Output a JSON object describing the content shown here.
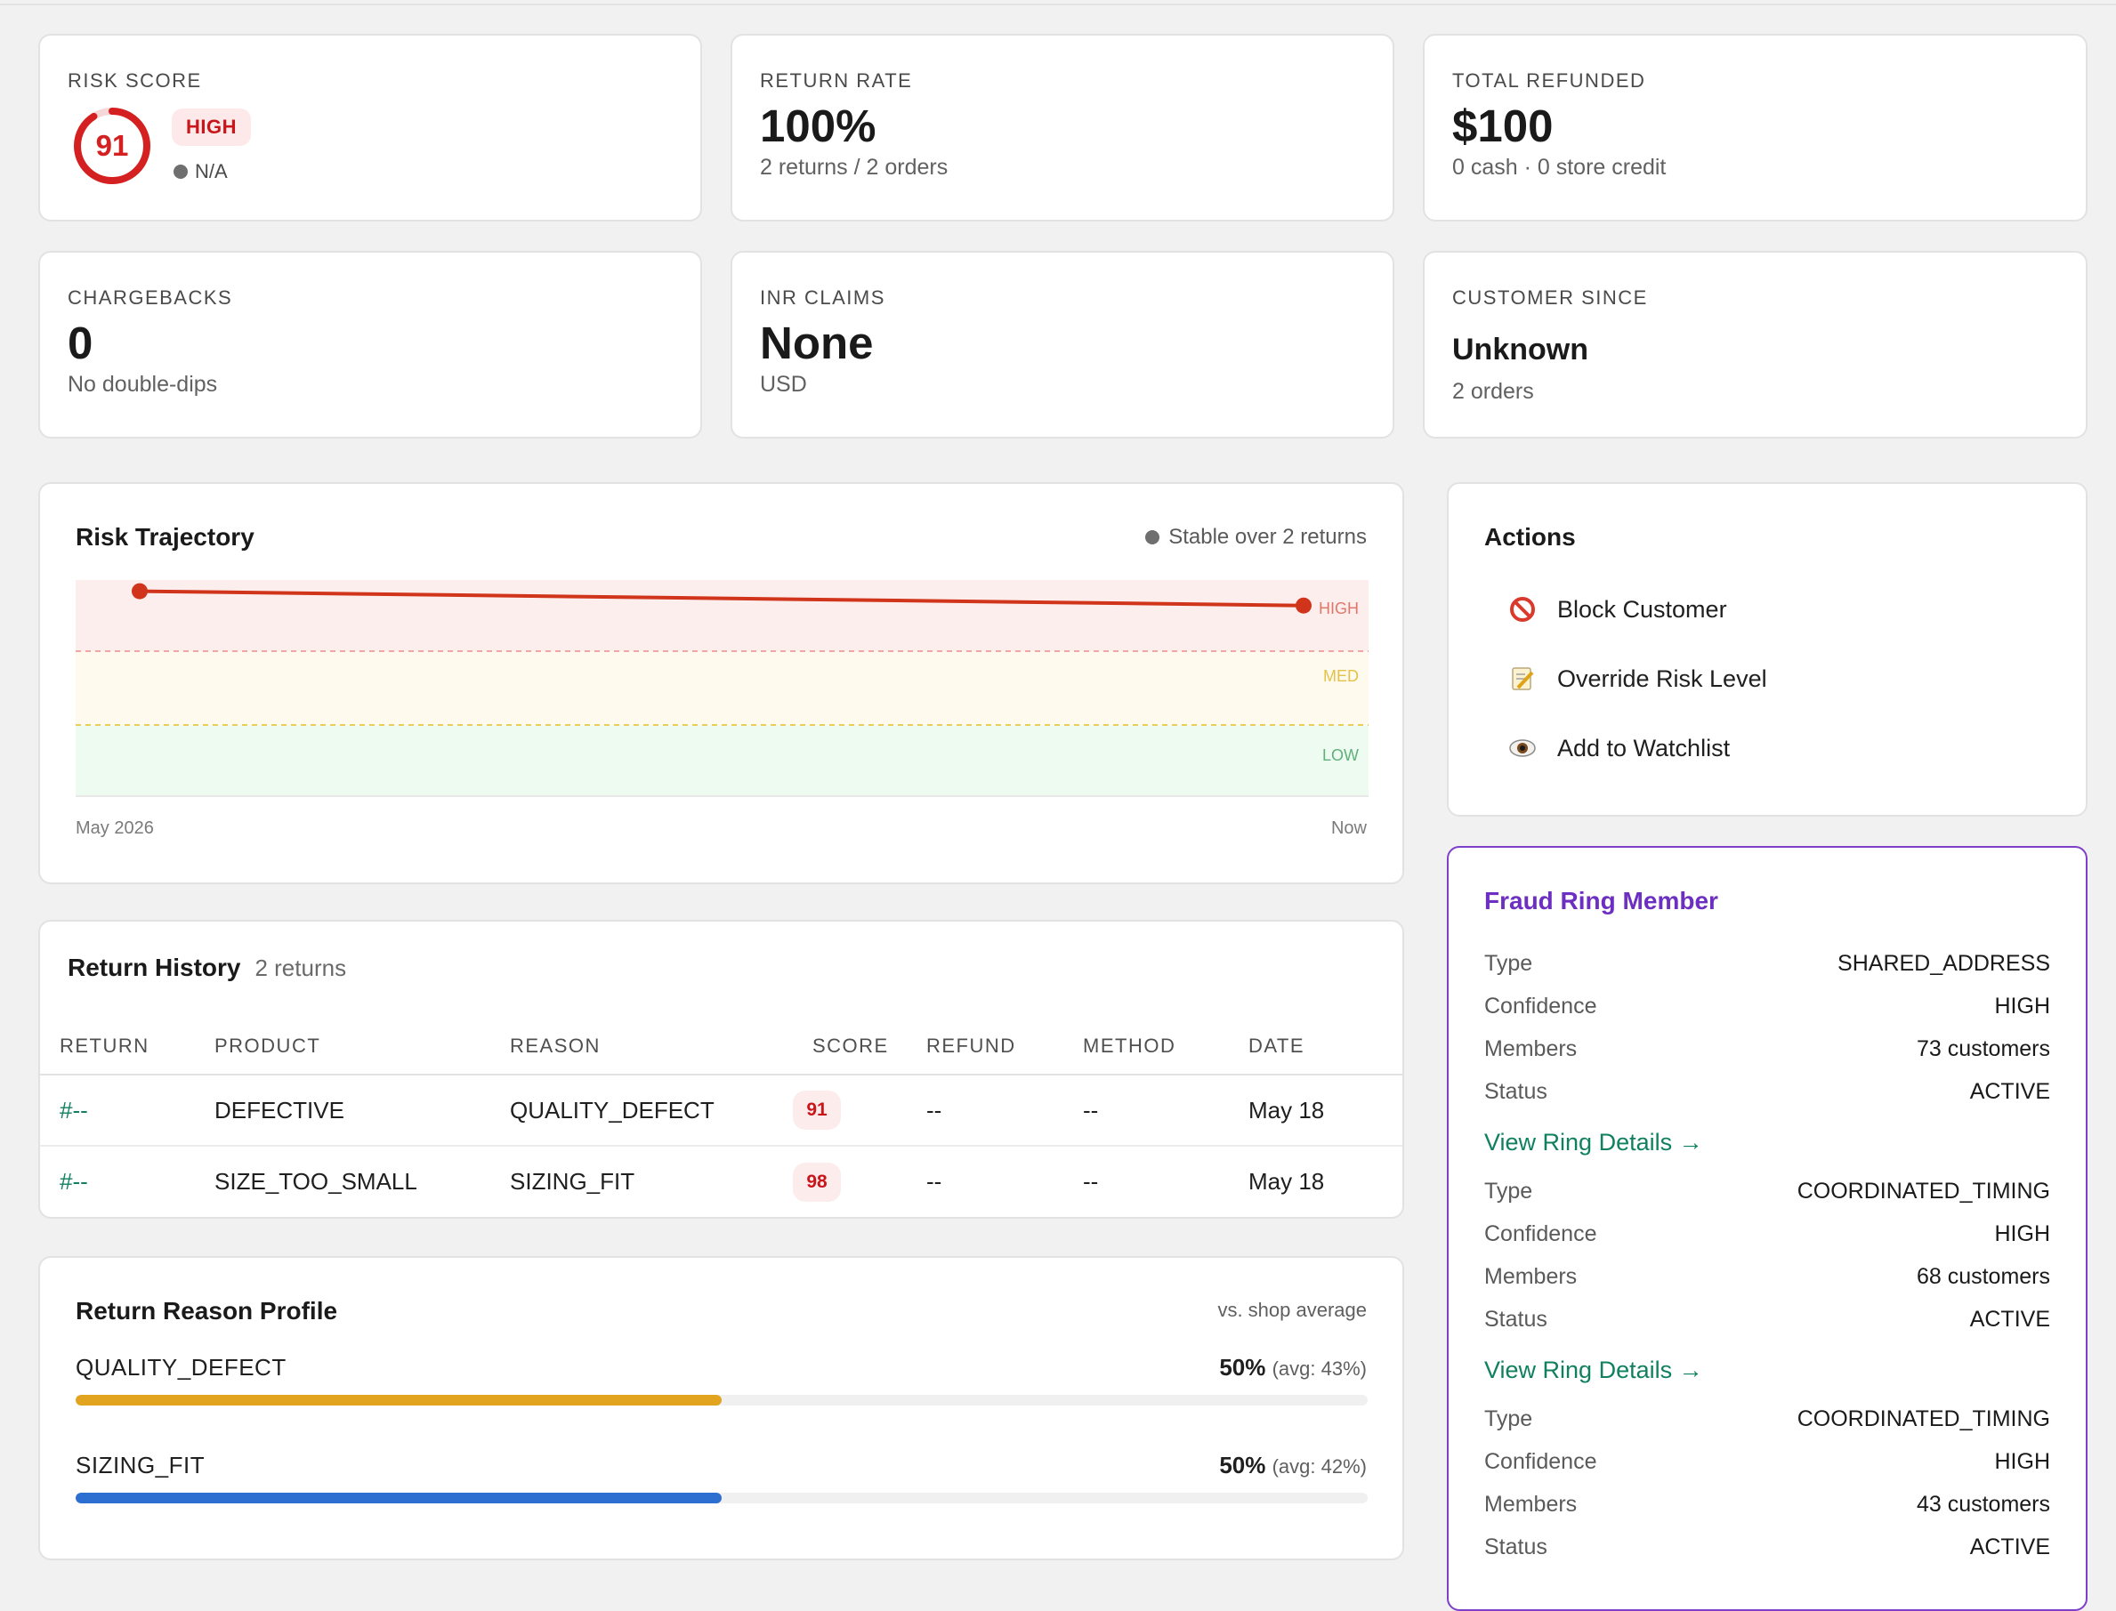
{
  "metrics": {
    "risk_score": {
      "label": "RISK SCORE",
      "value": "91",
      "level": "HIGH",
      "trend": "N/A"
    },
    "return_rate": {
      "label": "RETURN RATE",
      "value": "100%",
      "sub": "2 returns / 2 orders"
    },
    "total_refunded": {
      "label": "TOTAL REFUNDED",
      "value": "$100",
      "sub": "0 cash · 0 store credit"
    },
    "chargebacks": {
      "label": "CHARGEBACKS",
      "value": "0",
      "sub": "No double-dips"
    },
    "inr_claims": {
      "label": "INR CLAIMS",
      "value": "None",
      "sub": "USD"
    },
    "customer_since": {
      "label": "CUSTOMER SINCE",
      "value": "Unknown",
      "sub": "2 orders"
    }
  },
  "trajectory": {
    "title": "Risk Trajectory",
    "note": "Stable over 2 returns",
    "band_labels": {
      "high": "HIGH",
      "med": "MED",
      "low": "LOW"
    },
    "x_start": "May 2026",
    "x_end": "Now",
    "scores": [
      98,
      91
    ],
    "colors": {
      "line": "#d0341a",
      "high_band": "#fdeeee",
      "med_band": "#fefaee",
      "low_band": "#eefbf1"
    }
  },
  "actions": {
    "title": "Actions",
    "items": [
      {
        "label": "Block Customer",
        "icon": "prohibited-icon"
      },
      {
        "label": "Override Risk Level",
        "icon": "memo-icon"
      },
      {
        "label": "Add to Watchlist",
        "icon": "eye-icon"
      }
    ]
  },
  "return_history": {
    "title": "Return History",
    "count": "2 returns",
    "columns": [
      "RETURN",
      "PRODUCT",
      "REASON",
      "SCORE",
      "REFUND",
      "METHOD",
      "DATE"
    ],
    "rows": [
      {
        "return": "#--",
        "product": "DEFECTIVE",
        "reason": "QUALITY_DEFECT",
        "score": "91",
        "refund": "--",
        "method": "--",
        "date": "May 18"
      },
      {
        "return": "#--",
        "product": "SIZE_TOO_SMALL",
        "reason": "SIZING_FIT",
        "score": "98",
        "refund": "--",
        "method": "--",
        "date": "May 18"
      }
    ]
  },
  "reason_profile": {
    "title": "Return Reason Profile",
    "note": "vs. shop average",
    "items": [
      {
        "name": "QUALITY_DEFECT",
        "pct_label": "50%",
        "avg_label": "(avg: 43%)",
        "pct": 50,
        "color": "#e2a41f"
      },
      {
        "name": "SIZING_FIT",
        "pct_label": "50%",
        "avg_label": "(avg: 42%)",
        "pct": 50,
        "color": "#2d6fd0"
      }
    ]
  },
  "fraud_ring": {
    "title": "Fraud Ring Member",
    "link_label": "View Ring Details →",
    "keys": {
      "type": "Type",
      "confidence": "Confidence",
      "members": "Members",
      "status": "Status"
    },
    "rings": [
      {
        "type": "SHARED_ADDRESS",
        "confidence": "HIGH",
        "members": "73 customers",
        "status": "ACTIVE"
      },
      {
        "type": "COORDINATED_TIMING",
        "confidence": "HIGH",
        "members": "68 customers",
        "status": "ACTIVE"
      },
      {
        "type": "COORDINATED_TIMING",
        "confidence": "HIGH",
        "members": "43 customers",
        "status": "ACTIVE"
      }
    ]
  }
}
